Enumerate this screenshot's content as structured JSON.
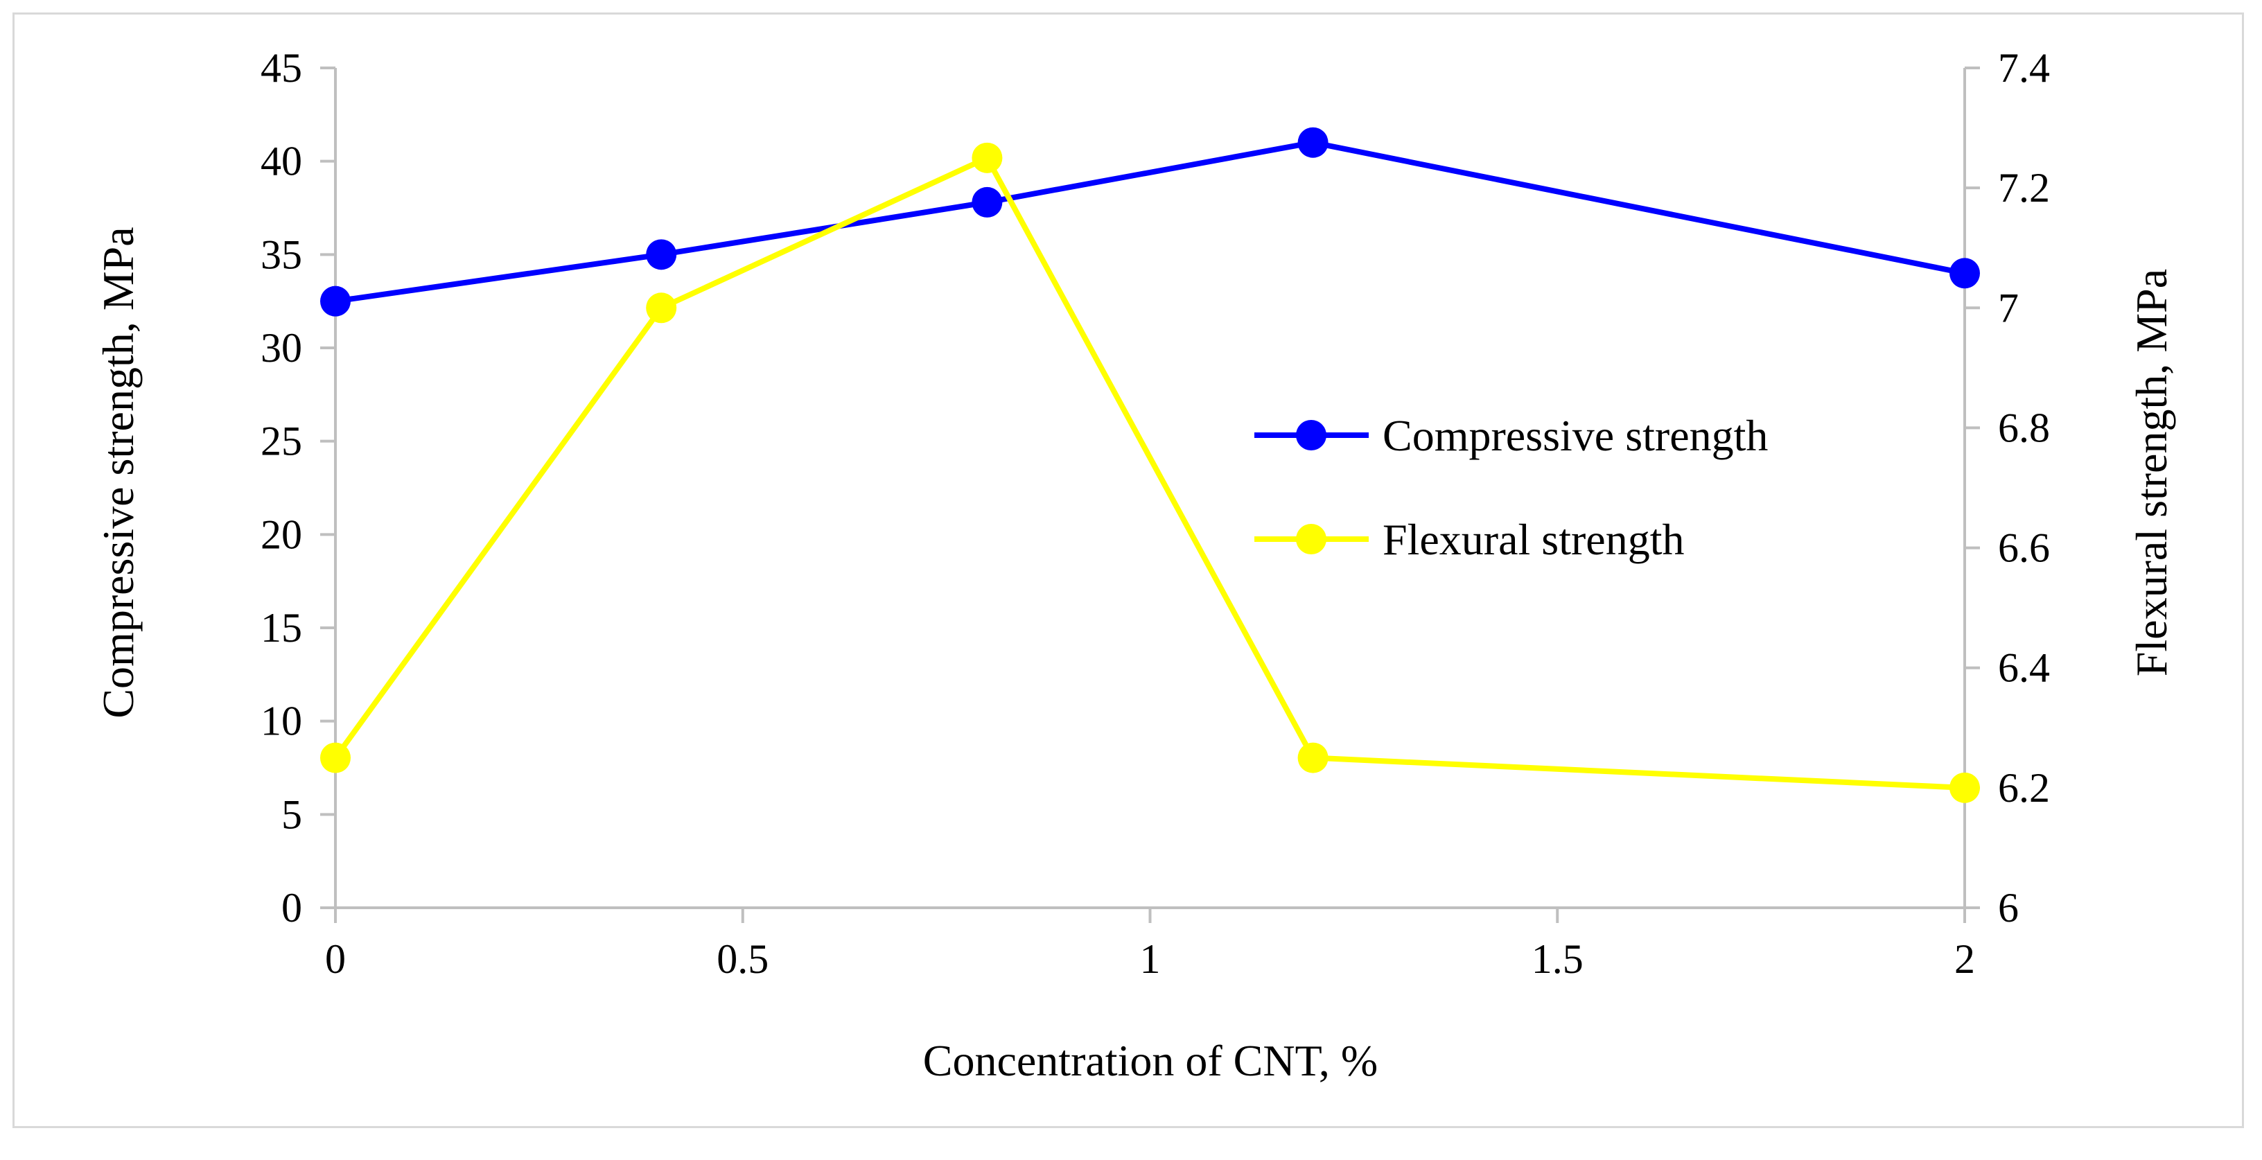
{
  "chart_data": {
    "type": "line",
    "title": "",
    "x": [
      0,
      0.4,
      0.8,
      1.2,
      2
    ],
    "xlabel": "Concentration of CNT, %",
    "xlim": [
      0,
      2
    ],
    "xticks": [
      "0",
      "0.5",
      "1",
      "1.5",
      "2"
    ],
    "ylabel": "Compressive strength, MPa",
    "ylim": [
      0,
      45
    ],
    "yticks": [
      "0",
      "5",
      "10",
      "15",
      "20",
      "25",
      "30",
      "35",
      "40",
      "45"
    ],
    "y2label": "Flexural strength, MPa",
    "y2lim": [
      6,
      7.4
    ],
    "y2ticks": [
      "6",
      "6.2",
      "6.4",
      "6.6",
      "6.8",
      "7",
      "7.2",
      "7.4"
    ],
    "grid": false,
    "legend_position": "center-right",
    "series": [
      {
        "name": "Compressive strength",
        "axis": "left",
        "color": "#0000ff",
        "values": [
          32.5,
          35,
          37.8,
          41,
          34
        ]
      },
      {
        "name": "Flexural strength",
        "axis": "right",
        "color": "#ffff00",
        "values": [
          6.25,
          7.0,
          7.25,
          6.25,
          6.2
        ]
      }
    ]
  }
}
